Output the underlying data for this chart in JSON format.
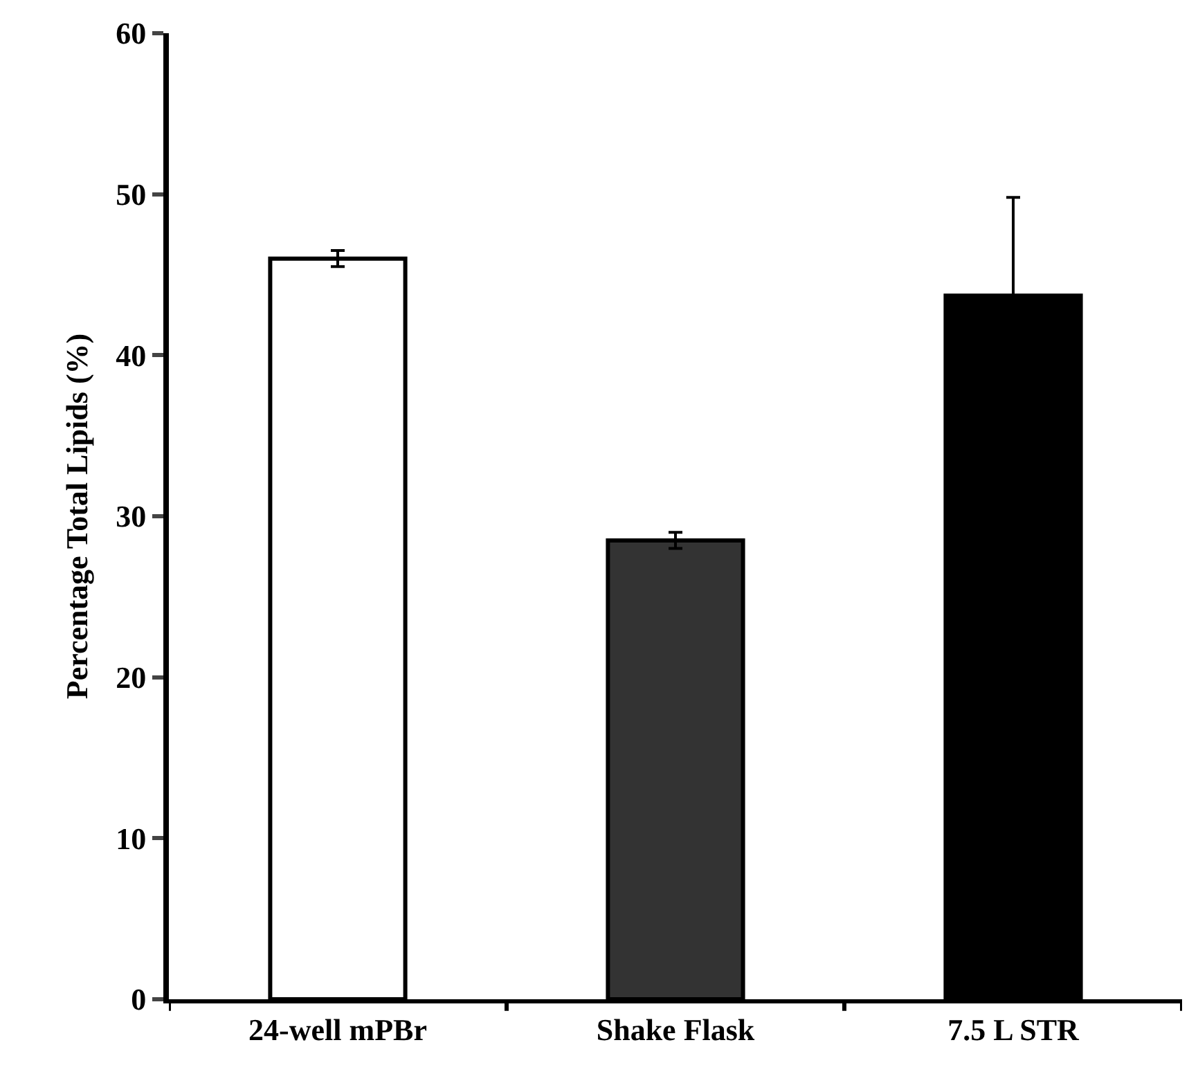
{
  "chart_data": {
    "type": "bar",
    "ylabel": "Percentage Total Lipids (%)",
    "categories": [
      "24-well mPBr",
      "Shake Flask",
      "7.5 L STR"
    ],
    "values": [
      46.0,
      28.5,
      43.7
    ],
    "colors": [
      "#ffffff",
      "#333333",
      "#000000"
    ],
    "errors": [
      0.5,
      0.5,
      6.1
    ],
    "ylim": [
      0,
      60
    ],
    "yticks": [
      0,
      10,
      20,
      30,
      40,
      50,
      60
    ]
  }
}
